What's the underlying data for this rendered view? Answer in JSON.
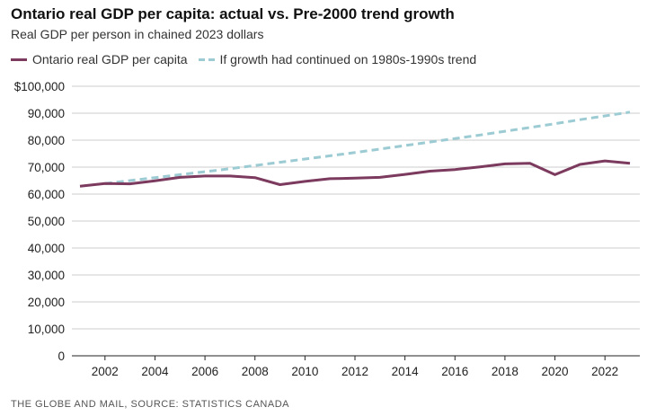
{
  "chart_data": {
    "type": "line",
    "title": "Ontario real GDP per capita: actual vs. Pre-2000 trend growth",
    "subtitle": "Real GDP per person in chained 2023 dollars",
    "xlabel": "",
    "ylabel": "",
    "ylim": [
      0,
      100000
    ],
    "yticks": [
      "0",
      "10,000",
      "20,000",
      "30,000",
      "40,000",
      "50,000",
      "60,000",
      "70,000",
      "80,000",
      "90,000",
      "$100,000"
    ],
    "xticks": [
      "2002",
      "2004",
      "2006",
      "2008",
      "2010",
      "2012",
      "2014",
      "2016",
      "2018",
      "2020",
      "2022"
    ],
    "grid": true,
    "legend_placement": "top-left",
    "x": [
      2001,
      2002,
      2003,
      2004,
      2005,
      2006,
      2007,
      2008,
      2009,
      2010,
      2011,
      2012,
      2013,
      2014,
      2015,
      2016,
      2017,
      2018,
      2019,
      2020,
      2021,
      2022,
      2023
    ],
    "series": [
      {
        "name": "Ontario real GDP per capita",
        "color": "#7b3a5e",
        "dashed": false,
        "values": [
          62900,
          63900,
          63800,
          64900,
          66200,
          66700,
          66700,
          66100,
          63500,
          64700,
          65700,
          65900,
          66200,
          67300,
          68500,
          69100,
          70100,
          71200,
          71400,
          67200,
          71000,
          72300,
          71400
        ]
      },
      {
        "name": "If growth had continued on 1980s-1990s trend",
        "color": "#9ccbd3",
        "dashed": true,
        "values": [
          null,
          63900,
          65000,
          66100,
          67200,
          68300,
          69400,
          70600,
          71800,
          73000,
          74200,
          75400,
          76700,
          78000,
          79300,
          80600,
          81900,
          83300,
          84700,
          86100,
          87600,
          89000,
          90400
        ]
      }
    ]
  },
  "source": "THE GLOBE AND MAIL, SOURCE: STATISTICS CANADA"
}
